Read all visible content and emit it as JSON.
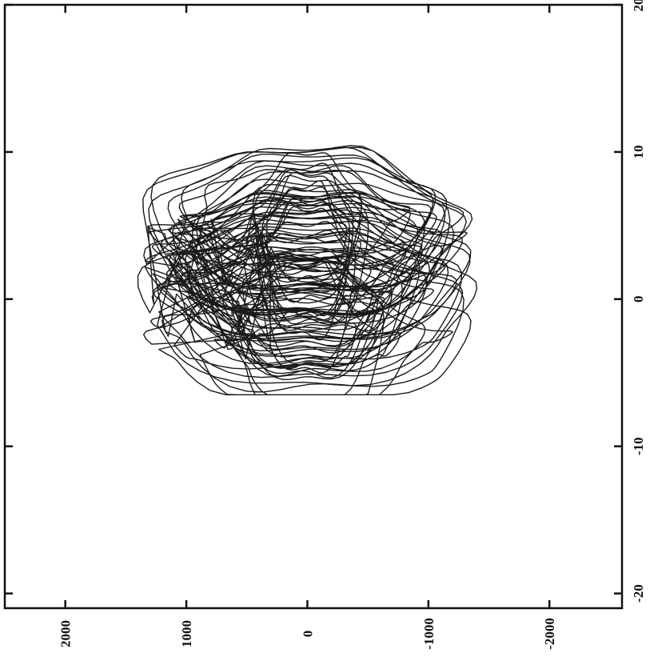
{
  "chart_data": {
    "type": "line",
    "title": "",
    "xlabel": "",
    "ylabel": "",
    "orientation": "rotated-90-clockwise",
    "x_axis": {
      "position": "right",
      "range": [
        -21,
        20
      ],
      "ticks": [
        -20,
        -10,
        0,
        10,
        20
      ],
      "tick_labels": [
        "-20",
        "-10",
        "0",
        "10",
        "20"
      ]
    },
    "y_axis": {
      "position": "bottom",
      "range": [
        -2600,
        2500
      ],
      "ticks": [
        2000,
        1000,
        0,
        -1000,
        -2000
      ],
      "tick_labels": [
        "2000",
        "1000",
        "0",
        "-1000",
        "-2000"
      ]
    },
    "grid": false,
    "legend": "none",
    "series": [
      {
        "style": "phase-portrait trajectory",
        "color": "#1a1a1a",
        "x_extent": [
          -6.5,
          10.5
        ],
        "y_extent": [
          -1400,
          1400
        ],
        "loops": 70,
        "seed": 7
      }
    ]
  }
}
